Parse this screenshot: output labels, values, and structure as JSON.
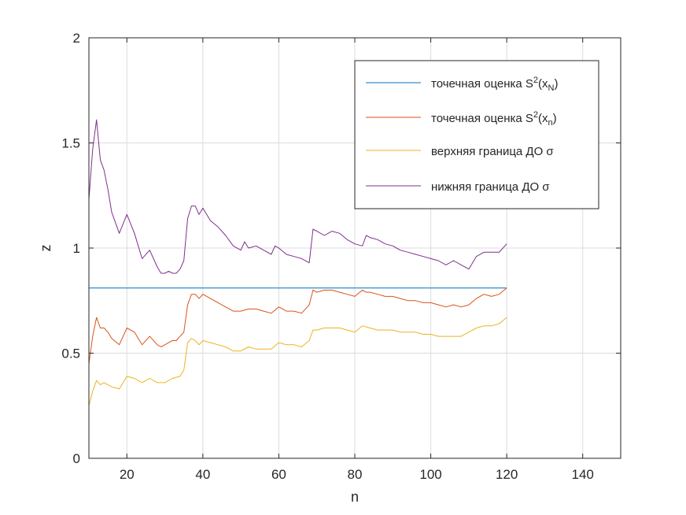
{
  "chart_data": {
    "type": "line",
    "xlabel": "n",
    "ylabel": "z",
    "xlim": [
      10,
      150
    ],
    "ylim": [
      0,
      2
    ],
    "xticks": [
      20,
      40,
      60,
      80,
      100,
      120,
      140
    ],
    "yticks": [
      0,
      0.5,
      1,
      1.5,
      2
    ],
    "ytick_labels": [
      "0",
      "0.5",
      "1",
      "1.5",
      "2"
    ],
    "grid": true,
    "legend_position": "top-right",
    "series": [
      {
        "name": "точечная оценка S2(xN)",
        "legend_main": "точечная оценка S",
        "legend_sup": "2",
        "legend_open": "(x",
        "legend_sub": "N",
        "legend_close": ")",
        "color": "#0072bd",
        "x": [
          10,
          120
        ],
        "y": [
          0.81,
          0.81
        ]
      },
      {
        "name": "точечная оценка S2(xn)",
        "legend_main": "точечная оценка S",
        "legend_sup": "2",
        "legend_open": "(x",
        "legend_sub": "n",
        "legend_close": ")",
        "color": "#d95319",
        "x": [
          10,
          11,
          12,
          13,
          14,
          15,
          16,
          18,
          20,
          22,
          24,
          26,
          28,
          29,
          30,
          31,
          32,
          33,
          34,
          35,
          36,
          37,
          38,
          39,
          40,
          42,
          44,
          46,
          48,
          50,
          52,
          54,
          56,
          58,
          60,
          62,
          64,
          66,
          68,
          69,
          70,
          72,
          74,
          76,
          78,
          80,
          82,
          83,
          84,
          86,
          88,
          90,
          92,
          94,
          96,
          98,
          100,
          102,
          104,
          106,
          108,
          110,
          112,
          114,
          116,
          118,
          120
        ],
        "y": [
          0.45,
          0.58,
          0.67,
          0.62,
          0.62,
          0.6,
          0.57,
          0.54,
          0.62,
          0.6,
          0.54,
          0.58,
          0.54,
          0.53,
          0.54,
          0.55,
          0.56,
          0.56,
          0.58,
          0.6,
          0.73,
          0.78,
          0.78,
          0.76,
          0.78,
          0.76,
          0.74,
          0.72,
          0.7,
          0.7,
          0.71,
          0.71,
          0.7,
          0.69,
          0.72,
          0.7,
          0.7,
          0.69,
          0.73,
          0.8,
          0.79,
          0.8,
          0.8,
          0.79,
          0.78,
          0.77,
          0.8,
          0.79,
          0.79,
          0.78,
          0.77,
          0.77,
          0.76,
          0.75,
          0.75,
          0.74,
          0.74,
          0.73,
          0.72,
          0.73,
          0.72,
          0.73,
          0.76,
          0.78,
          0.77,
          0.78,
          0.81
        ]
      },
      {
        "name": "верхняя граница ДО σ",
        "legend_main": "верхняя граница ДО σ",
        "color": "#edb120",
        "x": [
          10,
          11,
          12,
          13,
          14,
          15,
          16,
          18,
          20,
          22,
          24,
          26,
          28,
          30,
          32,
          34,
          35,
          36,
          37,
          38,
          39,
          40,
          42,
          44,
          46,
          48,
          50,
          52,
          54,
          56,
          58,
          60,
          62,
          64,
          66,
          68,
          69,
          70,
          72,
          74,
          76,
          78,
          80,
          82,
          84,
          86,
          88,
          90,
          92,
          94,
          96,
          98,
          100,
          102,
          104,
          106,
          108,
          110,
          112,
          114,
          116,
          118,
          120
        ],
        "y": [
          0.25,
          0.32,
          0.37,
          0.35,
          0.36,
          0.35,
          0.34,
          0.33,
          0.39,
          0.38,
          0.36,
          0.38,
          0.36,
          0.36,
          0.38,
          0.39,
          0.42,
          0.55,
          0.57,
          0.56,
          0.54,
          0.56,
          0.55,
          0.54,
          0.53,
          0.51,
          0.51,
          0.53,
          0.52,
          0.52,
          0.52,
          0.55,
          0.54,
          0.54,
          0.53,
          0.56,
          0.61,
          0.61,
          0.62,
          0.62,
          0.62,
          0.61,
          0.6,
          0.63,
          0.62,
          0.61,
          0.61,
          0.61,
          0.6,
          0.6,
          0.6,
          0.59,
          0.59,
          0.58,
          0.58,
          0.58,
          0.58,
          0.6,
          0.62,
          0.63,
          0.63,
          0.64,
          0.67
        ]
      },
      {
        "name": "нижняя граница ДО σ",
        "legend_main": "нижняя граница ДО σ",
        "color": "#7e2f8e",
        "x": [
          10,
          11,
          12,
          13,
          14,
          15,
          16,
          18,
          20,
          22,
          24,
          26,
          28,
          29,
          30,
          31,
          32,
          33,
          34,
          35,
          36,
          37,
          38,
          39,
          40,
          42,
          44,
          46,
          48,
          50,
          51,
          52,
          54,
          56,
          58,
          59,
          60,
          62,
          64,
          66,
          68,
          69,
          70,
          72,
          74,
          76,
          78,
          80,
          82,
          83,
          84,
          86,
          88,
          90,
          92,
          94,
          96,
          98,
          100,
          102,
          104,
          106,
          108,
          110,
          112,
          114,
          116,
          118,
          120
        ],
        "y": [
          1.23,
          1.47,
          1.61,
          1.42,
          1.37,
          1.28,
          1.17,
          1.07,
          1.16,
          1.07,
          0.95,
          0.99,
          0.91,
          0.88,
          0.88,
          0.89,
          0.88,
          0.88,
          0.9,
          0.94,
          1.14,
          1.2,
          1.2,
          1.16,
          1.19,
          1.13,
          1.1,
          1.06,
          1.01,
          0.99,
          1.03,
          1.0,
          1.01,
          0.99,
          0.97,
          1.01,
          1.0,
          0.97,
          0.96,
          0.95,
          0.93,
          1.09,
          1.08,
          1.06,
          1.08,
          1.07,
          1.04,
          1.02,
          1.01,
          1.06,
          1.05,
          1.04,
          1.02,
          1.01,
          0.99,
          0.98,
          0.97,
          0.96,
          0.95,
          0.94,
          0.92,
          0.94,
          0.92,
          0.9,
          0.96,
          0.98,
          0.98,
          0.98,
          1.02
        ]
      }
    ]
  }
}
